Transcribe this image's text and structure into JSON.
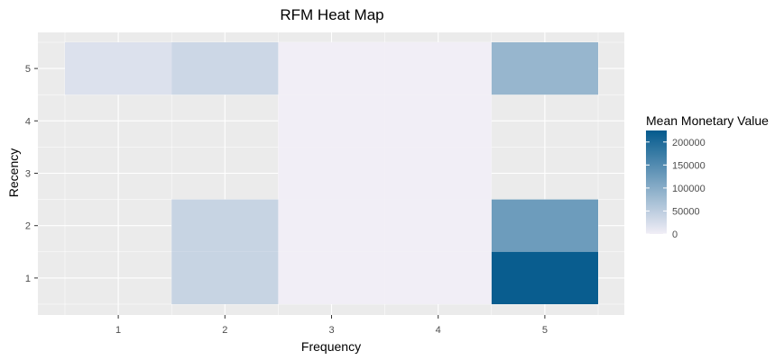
{
  "chart_data": {
    "type": "heatmap",
    "title": "RFM Heat Map",
    "xlabel": "Frequency",
    "ylabel": "Recency",
    "x_categories": [
      "1",
      "2",
      "3",
      "4",
      "5"
    ],
    "y_categories": [
      "1",
      "2",
      "3",
      "4",
      "5"
    ],
    "cells": [
      {
        "x": 1,
        "y": 5,
        "value": 20000
      },
      {
        "x": 2,
        "y": 5,
        "value": 35000
      },
      {
        "x": 5,
        "y": 5,
        "value": 85000
      },
      {
        "x": 2,
        "y": 2,
        "value": 40000
      },
      {
        "x": 2,
        "y": 1,
        "value": 40000
      },
      {
        "x": 5,
        "y": 2,
        "value": 125000
      },
      {
        "x": 5,
        "y": 1,
        "value": 220000
      },
      {
        "x": 3,
        "y": 1,
        "value": 0
      },
      {
        "x": 3,
        "y": 2,
        "value": 0
      },
      {
        "x": 3,
        "y": 3,
        "value": 0
      },
      {
        "x": 3,
        "y": 4,
        "value": 0
      },
      {
        "x": 3,
        "y": 5,
        "value": 0
      },
      {
        "x": 4,
        "y": 1,
        "value": 0
      },
      {
        "x": 4,
        "y": 2,
        "value": 0
      },
      {
        "x": 4,
        "y": 3,
        "value": 0
      },
      {
        "x": 4,
        "y": 4,
        "value": 0
      },
      {
        "x": 4,
        "y": 5,
        "value": 0
      }
    ],
    "color_scale": {
      "low": "#f1eef6",
      "high": "#045a8d",
      "min": 0,
      "max": 225000
    },
    "legend": {
      "title": "Mean Monetary Value",
      "ticks": [
        200000,
        150000,
        100000,
        50000,
        0
      ],
      "position": "right"
    },
    "grid": true,
    "panel_background": "#ebebeb"
  }
}
